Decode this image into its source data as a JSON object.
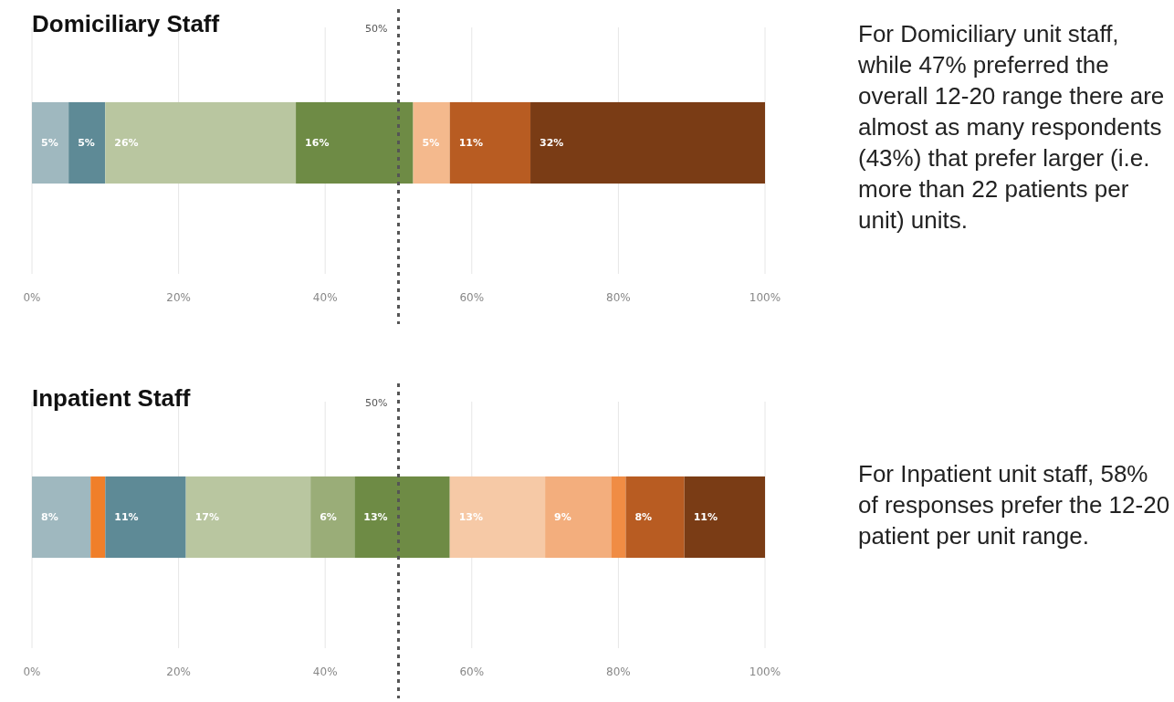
{
  "chart_data": [
    {
      "type": "bar",
      "title": "Domiciliary Staff",
      "orientation": "horizontal",
      "stacked": true,
      "categories": [
        null
      ],
      "xlim": [
        0,
        100
      ],
      "xticks": [
        {
          "value": 0,
          "label": "0%"
        },
        {
          "value": 20,
          "label": "20%"
        },
        {
          "value": 40,
          "label": "40%"
        },
        {
          "value": 60,
          "label": "60%"
        },
        {
          "value": 80,
          "label": "80%"
        },
        {
          "value": 100,
          "label": "100%"
        }
      ],
      "grid": "x",
      "ref_lines": [
        {
          "axis": "x",
          "value": 50,
          "label": "50%",
          "line_style": "dashed",
          "color": "#555555"
        }
      ],
      "annotations": [
        "For Domiciliary unit staff, while 47% preferred the overall 12-20 range there are almost as many respondents (43%) that prefer larger (i.e. more than 22 patients per unit) units."
      ],
      "series": [
        {
          "color": "#9fb8bf",
          "values": [
            5
          ],
          "value_labels": [
            "5%"
          ]
        },
        {
          "color": "#5e8a96",
          "values": [
            5
          ],
          "value_labels": [
            "5%"
          ]
        },
        {
          "color": "#b9c6a0",
          "values": [
            26
          ],
          "value_labels": [
            "26%"
          ]
        },
        {
          "color": "#6e8b45",
          "values": [
            16
          ],
          "value_labels": [
            "16%"
          ]
        },
        {
          "color": "#f4b98d",
          "values": [
            5
          ],
          "value_labels": [
            "5%"
          ]
        },
        {
          "color": "#b85c22",
          "values": [
            11
          ],
          "value_labels": [
            "11%"
          ]
        },
        {
          "color": "#7a3c15",
          "values": [
            32
          ],
          "value_labels": [
            "32%"
          ]
        }
      ]
    },
    {
      "type": "bar",
      "title": "Inpatient Staff",
      "orientation": "horizontal",
      "stacked": true,
      "categories": [
        null
      ],
      "xlim": [
        0,
        100
      ],
      "xticks": [
        {
          "value": 0,
          "label": "0%"
        },
        {
          "value": 20,
          "label": "20%"
        },
        {
          "value": 40,
          "label": "40%"
        },
        {
          "value": 60,
          "label": "60%"
        },
        {
          "value": 80,
          "label": "80%"
        },
        {
          "value": 100,
          "label": "100%"
        }
      ],
      "grid": "x",
      "ref_lines": [
        {
          "axis": "x",
          "value": 50,
          "label": "50%",
          "line_style": "dashed",
          "color": "#555555"
        }
      ],
      "annotations": [
        "For Inpatient unit staff, 58% of responses prefer the 12-20 patient per unit range."
      ],
      "series": [
        {
          "color": "#9fb8bf",
          "values": [
            8
          ],
          "value_labels": [
            "8%"
          ]
        },
        {
          "color": "#f07f2a",
          "values": [
            2
          ],
          "value_labels": [
            null
          ]
        },
        {
          "color": "#5e8a96",
          "values": [
            11
          ],
          "value_labels": [
            "11%"
          ]
        },
        {
          "color": "#b9c6a0",
          "values": [
            17
          ],
          "value_labels": [
            "17%"
          ]
        },
        {
          "color": "#9aad78",
          "values": [
            6
          ],
          "value_labels": [
            "6%"
          ]
        },
        {
          "color": "#6e8b45",
          "values": [
            13
          ],
          "value_labels": [
            "13%"
          ]
        },
        {
          "color": "#f6c9a6",
          "values": [
            13
          ],
          "value_labels": [
            "13%"
          ]
        },
        {
          "color": "#f3ae7d",
          "values": [
            9
          ],
          "value_labels": [
            "9%"
          ]
        },
        {
          "color": "#f08c44",
          "values": [
            2
          ],
          "value_labels": [
            null
          ]
        },
        {
          "color": "#b85c22",
          "values": [
            8
          ],
          "value_labels": [
            "8%"
          ]
        },
        {
          "color": "#7a3c15",
          "values": [
            11
          ],
          "value_labels": [
            "11%"
          ]
        }
      ]
    }
  ]
}
